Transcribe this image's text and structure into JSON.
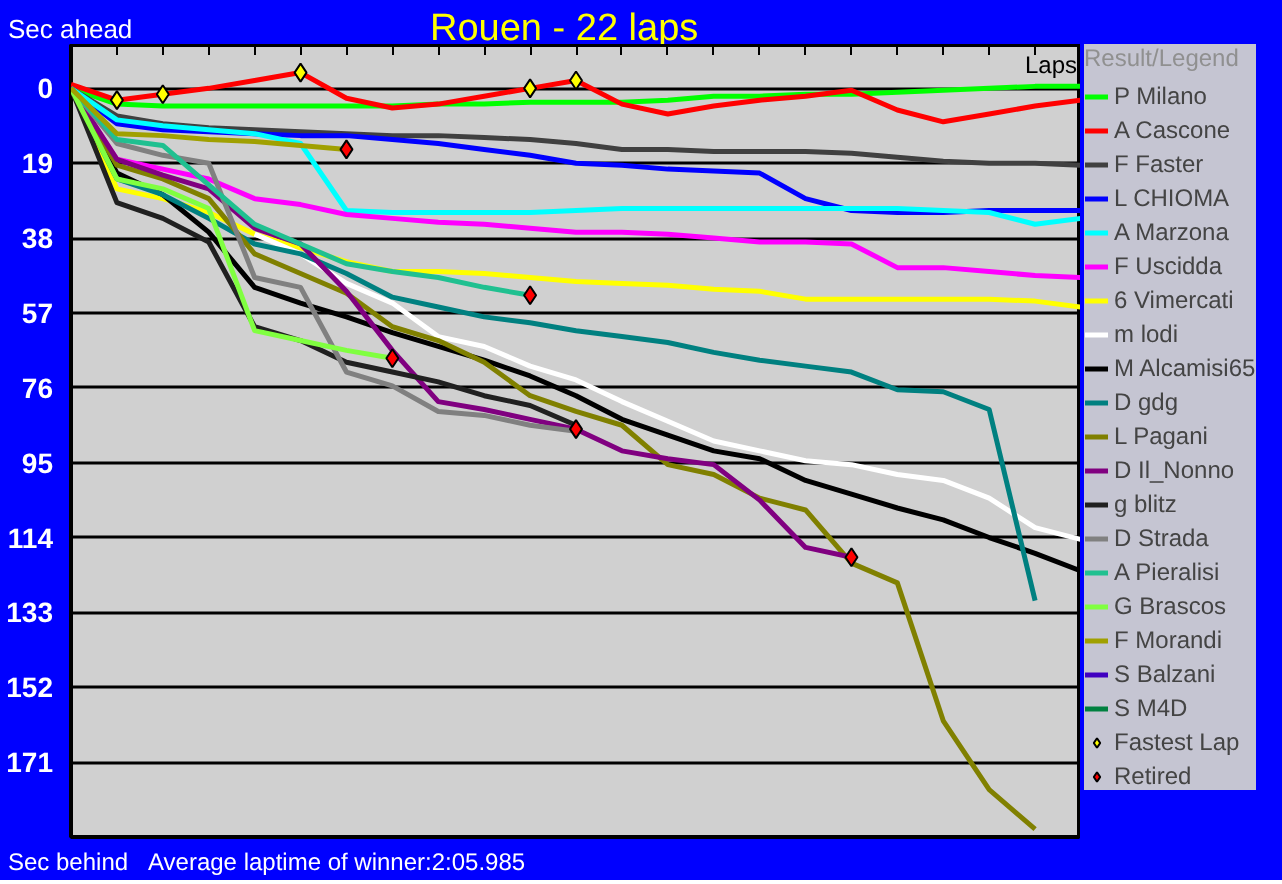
{
  "chart_data": {
    "type": "line",
    "title": "Rouen - 22 laps",
    "xlabel": "Laps",
    "ylabel": "Sec ahead",
    "legend_title": "Result/Legend",
    "annotations": [
      "Sec behind",
      "Average laptime of winner:2:05.985"
    ],
    "categories": [
      null,
      null,
      null,
      null,
      null,
      null,
      null,
      null,
      null,
      null,
      null,
      null,
      null,
      null,
      null,
      null,
      null,
      null,
      null,
      null,
      null,
      null,
      null
    ],
    "ylim": [
      190,
      -11
    ],
    "yticks": [
      0,
      19,
      38,
      57,
      76,
      95,
      114,
      133,
      152,
      171
    ],
    "tick_labels": "y",
    "grid": "y",
    "legend": "right",
    "line_style": "solid",
    "series": [
      {
        "name": "P Milano",
        "color": "#00ff00",
        "values": [
          0,
          4,
          4.5,
          4.5,
          4.5,
          4.5,
          4.5,
          4.5,
          4,
          4,
          3.5,
          3.5,
          3.5,
          3,
          2,
          2,
          1.5,
          1.5,
          1,
          0.5,
          0,
          -0.5,
          -0.5
        ]
      },
      {
        "name": "A Cascone",
        "color": "#ff0000",
        "values": [
          -1,
          3,
          1.5,
          0,
          -2,
          -4,
          2.5,
          5,
          4,
          2,
          0,
          -2,
          4,
          6.5,
          4.5,
          3,
          2,
          0.5,
          5.5,
          8.5,
          6.5,
          4.5,
          3
        ]
      },
      {
        "name": "F Faster",
        "color": "#404040",
        "values": [
          0,
          7,
          9,
          10,
          10.5,
          11,
          11.5,
          12,
          12,
          12.5,
          13,
          14,
          15.5,
          15.5,
          16,
          16,
          16,
          16.5,
          17.5,
          18.5,
          19,
          19,
          19.5
        ]
      },
      {
        "name": "L CHIOMA",
        "color": "#0000ff",
        "values": [
          0,
          9,
          10.5,
          11,
          11.5,
          12,
          12,
          13,
          14,
          15.5,
          17,
          19,
          19.5,
          20.5,
          21,
          21.5,
          28,
          31,
          31.5,
          31.5,
          31,
          31,
          31
        ]
      },
      {
        "name": "A Marzona",
        "color": "#00ffff",
        "values": [
          0,
          8,
          9.5,
          10.5,
          11.5,
          14,
          31,
          31.5,
          31.5,
          31.5,
          31.5,
          31,
          30.5,
          30.5,
          30.5,
          30.5,
          30.5,
          30.5,
          30.5,
          31,
          31.5,
          34.5,
          33
        ]
      },
      {
        "name": "F Uscidda",
        "color": "#ff00ff",
        "values": [
          0,
          18,
          20.5,
          23,
          28,
          29.5,
          32,
          33,
          34,
          34.5,
          35.5,
          36.5,
          36.5,
          37,
          38,
          39,
          39,
          39.5,
          45.5,
          45.5,
          46.5,
          47.5,
          48
        ]
      },
      {
        "name": "6 Vimercati",
        "color": "#ffff00",
        "values": [
          0,
          25.5,
          28,
          31.5,
          37,
          40.5,
          44,
          46.5,
          46.5,
          47,
          48,
          49,
          49.5,
          50,
          51,
          51.5,
          53.5,
          53.5,
          53.5,
          53.5,
          53.5,
          54,
          55.5
        ]
      },
      {
        "name": "m lodi",
        "color": "#ffffff",
        "values": [
          null,
          null,
          null,
          null,
          37,
          42,
          49.5,
          54.5,
          63,
          65.5,
          70.5,
          74,
          79.5,
          84.5,
          89.5,
          92,
          94.5,
          95.5,
          98,
          99.5,
          104,
          111.5,
          114.5
        ]
      },
      {
        "name": "M Alcamisi65",
        "color": "#000000",
        "values": [
          0,
          21.5,
          27,
          36.5,
          50.5,
          54.5,
          58,
          62,
          65.5,
          69,
          73,
          78,
          84,
          88,
          92,
          94,
          99.5,
          103,
          106.5,
          109.5,
          114,
          118,
          122.5
        ]
      },
      {
        "name": "D gdg",
        "color": "#008080",
        "values": [
          0,
          23,
          27,
          33,
          39.5,
          42,
          47,
          53,
          55.5,
          58,
          59.5,
          61.5,
          63,
          64.5,
          67,
          69,
          70.5,
          72,
          76.5,
          77,
          81.5,
          130,
          null
        ]
      },
      {
        "name": "L Pagani",
        "color": "#808000",
        "values": [
          0,
          19.5,
          23,
          28,
          42,
          47,
          52,
          60.5,
          64,
          69.5,
          78,
          82,
          85.5,
          95.5,
          98,
          104,
          107,
          120.5,
          125.5,
          160.5,
          178,
          188,
          null
        ]
      },
      {
        "name": "D Il_Nonno",
        "color": "#800080",
        "values": [
          0,
          18,
          22,
          25.5,
          35.5,
          39.5,
          51.5,
          66.5,
          79.5,
          81.5,
          84,
          86.5,
          92,
          94,
          95.5,
          104.5,
          116.5,
          119,
          null,
          null,
          null,
          null,
          null
        ]
      },
      {
        "name": "g blitz",
        "color": "#202020",
        "values": [
          0,
          29,
          33,
          39,
          60.5,
          64,
          69.5,
          72,
          74.5,
          78,
          80.5,
          85.5,
          null,
          null,
          null,
          null,
          null,
          null,
          null,
          null,
          null,
          null,
          null
        ]
      },
      {
        "name": "D Strada",
        "color": "#808080",
        "values": [
          0,
          14,
          17,
          19,
          48,
          50.5,
          72,
          75.5,
          82,
          83,
          85.5,
          87,
          null,
          null,
          null,
          null,
          null,
          null,
          null,
          null,
          null,
          null,
          null
        ]
      },
      {
        "name": "A Pieralisi",
        "color": "#20c090",
        "values": [
          0,
          13,
          14.5,
          24.5,
          34.5,
          39.5,
          44.5,
          46.5,
          48,
          50.5,
          52.5,
          null,
          null,
          null,
          null,
          null,
          null,
          null,
          null,
          null,
          null,
          null,
          null
        ]
      },
      {
        "name": "G Brascos",
        "color": "#80ff40",
        "values": [
          0,
          23,
          25.5,
          30.5,
          61.5,
          64,
          66.5,
          68.5,
          null,
          null,
          null,
          null,
          null,
          null,
          null,
          null,
          null,
          null,
          null,
          null,
          null,
          null,
          null
        ]
      },
      {
        "name": "F Morandi",
        "color": "#a0a000",
        "values": [
          0,
          11.5,
          12,
          13,
          13.5,
          14.5,
          15.5,
          null,
          null,
          null,
          null,
          null,
          null,
          null,
          null,
          null,
          null,
          null,
          null,
          null,
          null,
          null,
          null
        ]
      },
      {
        "name": "S Balzani",
        "color": "#4000c0",
        "values": [
          null,
          null,
          null,
          null,
          null,
          null,
          null,
          null,
          null,
          null,
          null,
          null,
          null,
          null,
          null,
          null,
          null,
          null,
          null,
          null,
          null,
          null,
          null
        ]
      },
      {
        "name": "S M4D",
        "color": "#008040",
        "values": [
          null,
          null,
          null,
          null,
          null,
          null,
          null,
          null,
          null,
          null,
          null,
          null,
          null,
          null,
          null,
          null,
          null,
          null,
          null,
          null,
          null,
          null,
          null
        ]
      },
      {
        "name": "Fastest Lap",
        "color": "#ffff00",
        "type": "scatter",
        "marker": "diamond",
        "values": [
          null,
          3,
          1.5,
          null,
          null,
          -4,
          null,
          null,
          null,
          null,
          0,
          -2,
          null,
          null,
          null,
          null,
          null,
          null,
          null,
          null,
          null,
          null,
          null
        ]
      },
      {
        "name": "Retired",
        "color": "#ff0000",
        "type": "scatter",
        "marker": "diamond",
        "values": [
          null,
          null,
          null,
          null,
          null,
          null,
          15.5,
          68.5,
          null,
          null,
          52.5,
          86.5,
          null,
          null,
          null,
          null,
          null,
          119,
          null,
          null,
          null,
          null,
          null
        ]
      }
    ]
  }
}
